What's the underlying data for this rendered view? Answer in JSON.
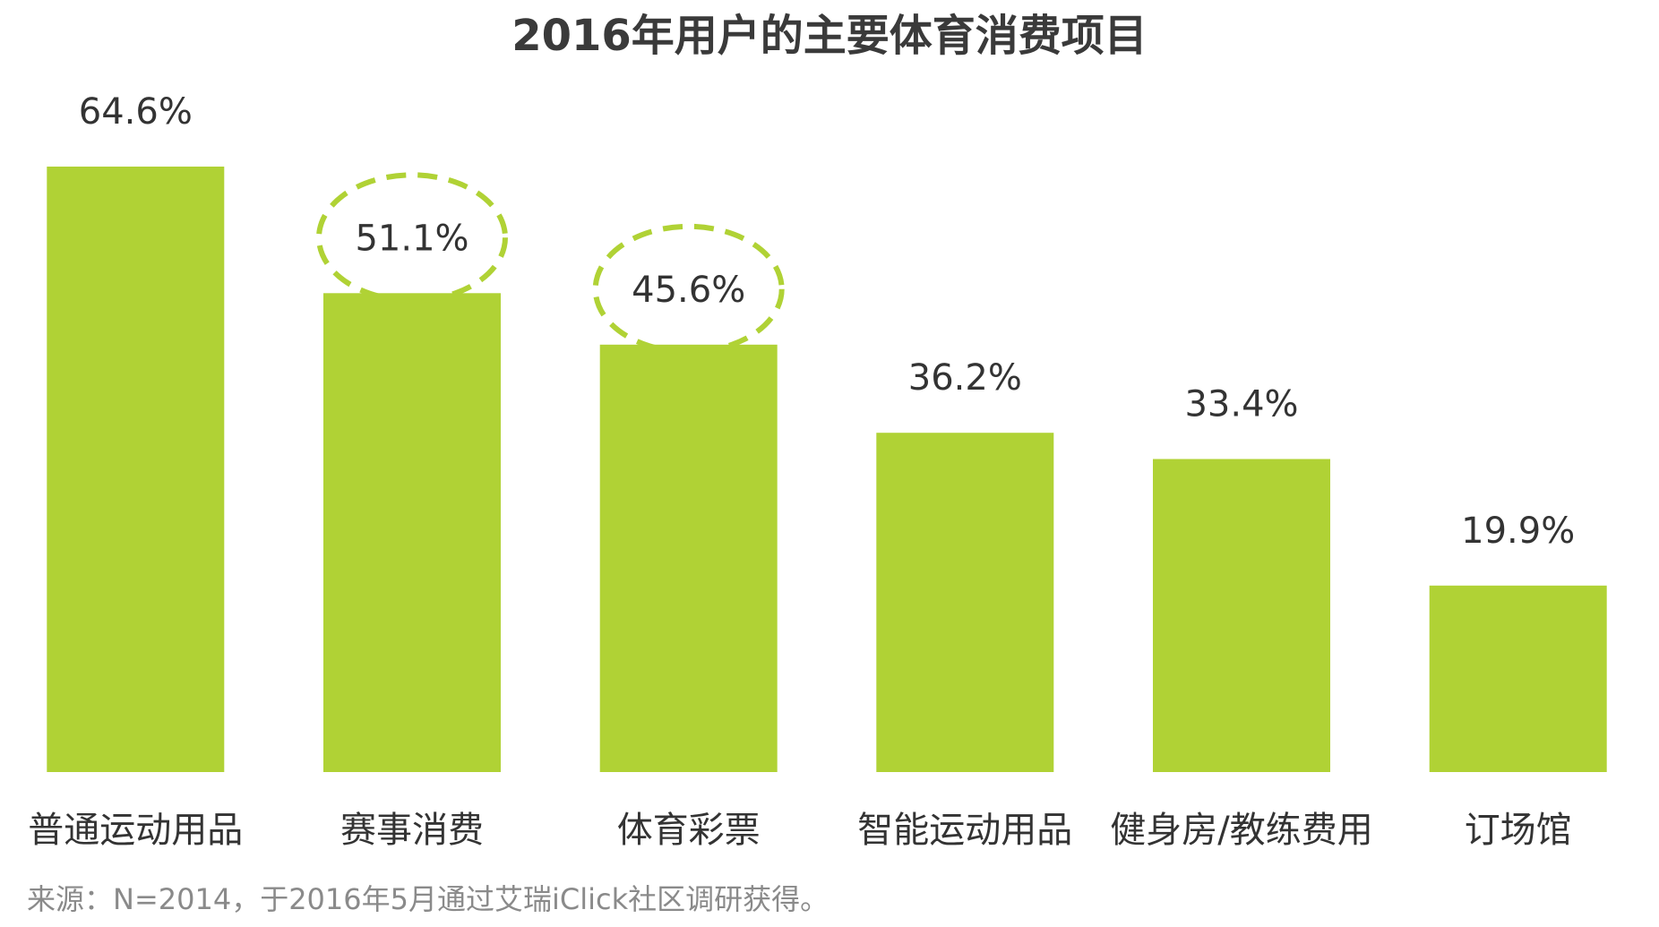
{
  "chart_data": {
    "type": "bar",
    "title": "2016年用户的主要体育消费项目",
    "categories": [
      "普通运动用品",
      "赛事消费",
      "体育彩票",
      "智能运动用品",
      "健身房/教练费用",
      "订场馆"
    ],
    "values": [
      64.6,
      51.1,
      45.6,
      36.2,
      33.4,
      19.9
    ],
    "value_labels": [
      "64.6%",
      "51.1%",
      "45.6%",
      "36.2%",
      "33.4%",
      "19.9%"
    ],
    "highlighted": [
      false,
      true,
      true,
      false,
      false,
      false
    ],
    "xlabel": "",
    "ylabel": "",
    "ylim": [
      0,
      64.6
    ],
    "unit": "%",
    "grid": false,
    "legend": "none",
    "bar_color": "#b0d235",
    "highlight_color": "#b0d235",
    "source_note": "来源：N=2014，于2016年5月通过艾瑞iClick社区调研获得。"
  }
}
